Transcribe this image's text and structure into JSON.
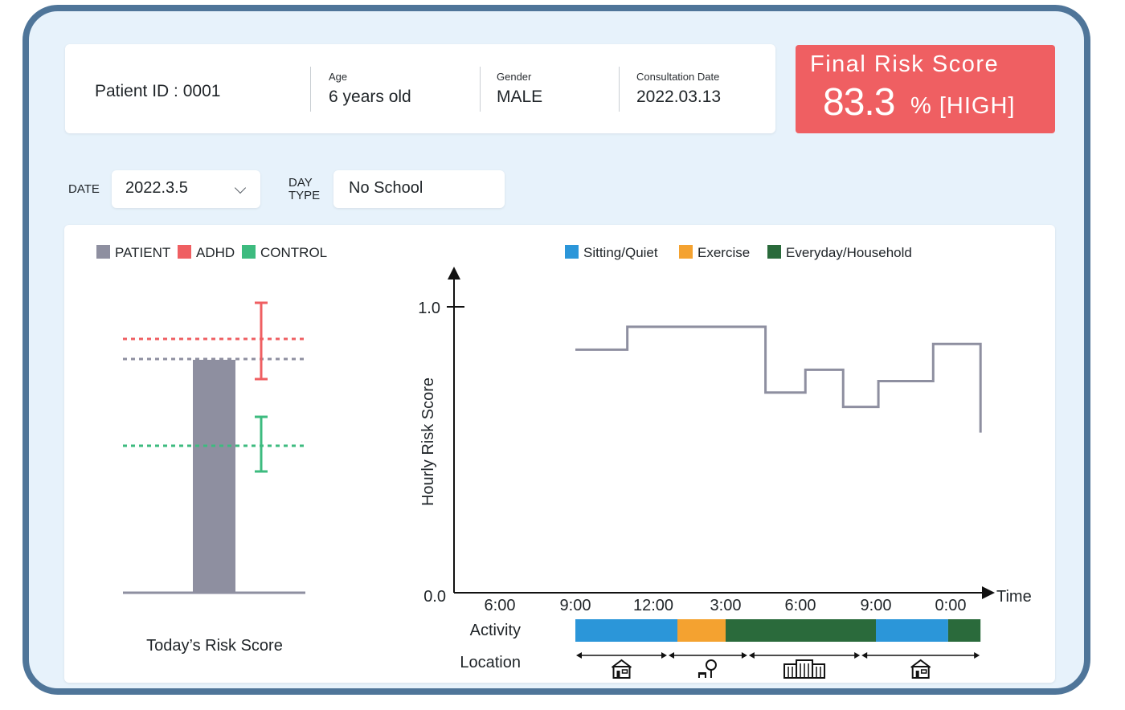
{
  "patient": {
    "id_label": "Patient ID : 0001",
    "age_label": "Age",
    "age_value": "6 years old",
    "gender_label": "Gender",
    "gender_value": "MALE",
    "consult_label": "Consultation Date",
    "consult_value": "2022.03.13"
  },
  "final_risk": {
    "title": "Final Risk Score",
    "value": "83.3",
    "unit": "% [HIGH]",
    "color": "#ef5f62"
  },
  "controls": {
    "date_label": "DATE",
    "date_value": "2022.3.5",
    "daytype_label_line1": "DAY",
    "daytype_label_line2": "TYPE",
    "daytype_value": "No School"
  },
  "today_chart": {
    "legend": [
      {
        "name": "PATIENT",
        "color": "#8e8fa0"
      },
      {
        "name": "ADHD",
        "color": "#ef5f62"
      },
      {
        "name": "CONTROL",
        "color": "#3dbb7f"
      }
    ],
    "title": "Today’s Risk Score"
  },
  "chart_data": {
    "type": "line",
    "ylabel": "Hourly Risk Score",
    "xlabel": "Time",
    "ylim": [
      0,
      1
    ],
    "y_ticks": [
      "0.0",
      "1.0"
    ],
    "x_ticks": [
      "6:00",
      "9:00",
      "12:00",
      "3:00",
      "6:00",
      "9:00",
      "0:00"
    ],
    "series": [
      {
        "color": "#8e8fa0",
        "step_x_hours": [
          9,
          11,
          14.5,
          16.6,
          18.2,
          19.7,
          21.1,
          23.3,
          25.2
        ],
        "values": [
          0.85,
          0.93,
          0.93,
          0.7,
          0.78,
          0.65,
          0.74,
          0.87,
          0.56
        ]
      }
    ],
    "activity_legend": [
      {
        "name": "Sitting/Quiet",
        "color": "#2b96d9"
      },
      {
        "name": "Exercise",
        "color": "#f4a230"
      },
      {
        "name": "Everyday/Household",
        "color": "#2a6a3b"
      }
    ],
    "activity_label": "Activity",
    "activity_segments": [
      {
        "activity": "Sitting/Quiet",
        "start": 9,
        "end": 13
      },
      {
        "activity": "Exercise",
        "start": 13,
        "end": 15
      },
      {
        "activity": "Everyday/Household",
        "start": 15,
        "end": 21
      },
      {
        "activity": "Sitting/Quiet",
        "start": 21,
        "end": 23.9
      },
      {
        "activity": "Everyday/Household",
        "start": 23.9,
        "end": 25.2
      }
    ],
    "location_label": "Location",
    "location_segments": [
      {
        "icon": "house-icon",
        "start": 9,
        "end": 12.6
      },
      {
        "icon": "park-icon",
        "start": 12.6,
        "end": 15.9
      },
      {
        "icon": "school-icon",
        "start": 15.9,
        "end": 20.4
      },
      {
        "icon": "house-icon",
        "start": 20.4,
        "end": 25.2
      }
    ]
  }
}
